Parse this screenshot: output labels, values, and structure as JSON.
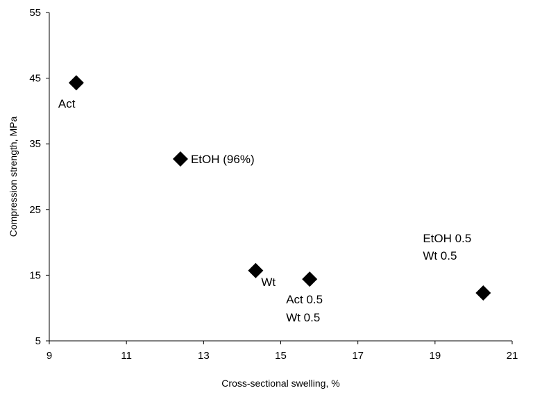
{
  "chart_data": {
    "type": "scatter",
    "title": "",
    "xlabel": "Cross-sectional swelling, %",
    "ylabel": "Compression strength, MPa",
    "xlim": [
      9,
      21
    ],
    "ylim": [
      5,
      55
    ],
    "xticks": [
      9,
      11,
      13,
      15,
      17,
      19,
      21
    ],
    "yticks": [
      5,
      15,
      25,
      35,
      45,
      55
    ],
    "grid": false,
    "legend": "none",
    "marker": "diamond",
    "marker_color": "#000000",
    "points": [
      {
        "x": 9.7,
        "y": 44.3,
        "label": [
          "Act"
        ]
      },
      {
        "x": 12.4,
        "y": 32.7,
        "label": [
          "EtOH (96%)"
        ]
      },
      {
        "x": 14.35,
        "y": 15.7,
        "label": [
          "Wt"
        ]
      },
      {
        "x": 15.75,
        "y": 14.4,
        "label": [
          "Act 0.5",
          "Wt 0.5"
        ]
      },
      {
        "x": 20.25,
        "y": 12.3,
        "label": [
          "EtOH 0.5",
          "Wt 0.5"
        ]
      }
    ]
  }
}
